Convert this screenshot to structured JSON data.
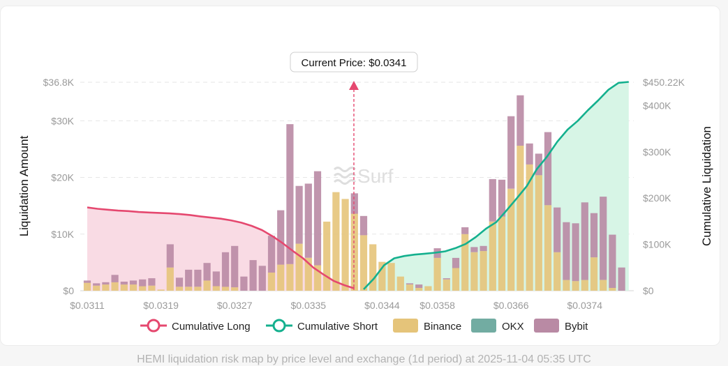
{
  "caption": "HEMI liquidation risk map by price level and exchange (1d period) at 2025-11-04 05:35 UTC",
  "watermark": "Surf",
  "current_price_label": "Current Price: $0.0341",
  "colors": {
    "long": "#e5486f",
    "long_fill": "#f9dbe4",
    "short": "#14b08e",
    "short_fill": "#d7f5e6",
    "binance": "#e5c47a",
    "okx": "#72aca2",
    "bybit": "#b98aa4",
    "grid": "#e6e6e6",
    "current_price": "#e5486f"
  },
  "chart_data": {
    "type": "bar",
    "stacked": true,
    "title": "",
    "xlabel": "",
    "ylabel": "Liquidation Amount",
    "y2label": "Cumulative Liquidation",
    "ylim": [
      0,
      36800
    ],
    "y2lim": [
      0,
      450220
    ],
    "yticks": [
      "$0",
      "$10K",
      "$20K",
      "$30K",
      "$36.8K"
    ],
    "ytick_values": [
      0,
      10000,
      20000,
      30000,
      36800
    ],
    "y2ticks": [
      "$0",
      "$100K",
      "$200K",
      "$300K",
      "$400K",
      "$450.22K"
    ],
    "y2tick_values": [
      0,
      100000,
      200000,
      300000,
      400000,
      450220
    ],
    "xticks": [
      "$0.0311",
      "$0.0319",
      "$0.0327",
      "$0.0335",
      "$0.0344",
      "$0.0358",
      "$0.0366",
      "$0.0374"
    ],
    "xtick_indices": [
      0,
      8,
      16,
      24,
      32,
      38,
      46,
      54
    ],
    "current_price": 0.0341,
    "current_price_index": 29.5,
    "legend": [
      "Cumulative Long",
      "Cumulative Short",
      "Binance",
      "OKX",
      "Bybit"
    ],
    "legend_position": "bottom",
    "series": [
      {
        "name": "Binance",
        "values": [
          1400,
          900,
          1100,
          1500,
          1100,
          1100,
          800,
          900,
          200,
          4100,
          700,
          700,
          700,
          1800,
          800,
          700,
          600,
          0,
          0,
          0,
          3200,
          4600,
          4700,
          8300,
          5800,
          4500,
          12200,
          17400,
          16200,
          13600,
          9800,
          8200,
          5100,
          4900,
          2500,
          1100,
          500,
          800,
          5800,
          2000,
          4000,
          10000,
          6800,
          7000,
          12200,
          13100,
          18000,
          25600,
          22300,
          20400,
          15100,
          6800,
          1900,
          1700,
          1900,
          5900,
          1900,
          500,
          0
        ]
      },
      {
        "name": "OKX",
        "values": [
          0,
          0,
          0,
          0,
          0,
          0,
          0,
          0,
          0,
          0,
          0,
          0,
          0,
          0,
          0,
          0,
          0,
          0,
          0,
          0,
          0,
          0,
          0,
          0,
          0,
          0,
          0,
          0,
          0,
          0,
          0,
          0,
          0,
          0,
          0,
          0,
          0,
          0,
          0,
          0,
          0,
          0,
          0,
          0,
          0,
          0,
          0,
          0,
          0,
          0,
          0,
          0,
          0,
          0,
          0,
          0,
          0,
          0,
          0
        ]
      },
      {
        "name": "Bybit",
        "values": [
          400,
          400,
          400,
          1300,
          500,
          700,
          1200,
          1300,
          0,
          4100,
          1600,
          3000,
          3000,
          3100,
          2600,
          6100,
          7300,
          2500,
          5400,
          4400,
          6500,
          9600,
          24700,
          10200,
          13100,
          16600,
          0,
          0,
          0,
          3600,
          3400,
          0,
          0,
          0,
          0,
          200,
          600,
          0,
          1700,
          200,
          1800,
          1200,
          900,
          900,
          7500,
          6500,
          12800,
          8900,
          3700,
          3800,
          12900,
          7900,
          10200,
          10200,
          13700,
          7800,
          14700,
          9400,
          4100
        ]
      }
    ],
    "cumulative_long": [
      180000,
      177000,
      175000,
      173000,
      172000,
      170000,
      169000,
      168000,
      167000,
      165500,
      163500,
      160500,
      158000,
      155500,
      152000,
      147000,
      140000,
      131000,
      118000,
      103000,
      86000,
      70000,
      50000,
      35000,
      21000,
      12000,
      5000
    ],
    "cumulative_short": [
      3000,
      26000,
      55000,
      70000,
      75000,
      78000,
      80000,
      82000,
      85000,
      92000,
      101000,
      116000,
      134000,
      148000,
      173000,
      199000,
      226000,
      263000,
      290000,
      322000,
      348000,
      367000,
      390000,
      411000,
      434000,
      449000,
      451000
    ]
  }
}
